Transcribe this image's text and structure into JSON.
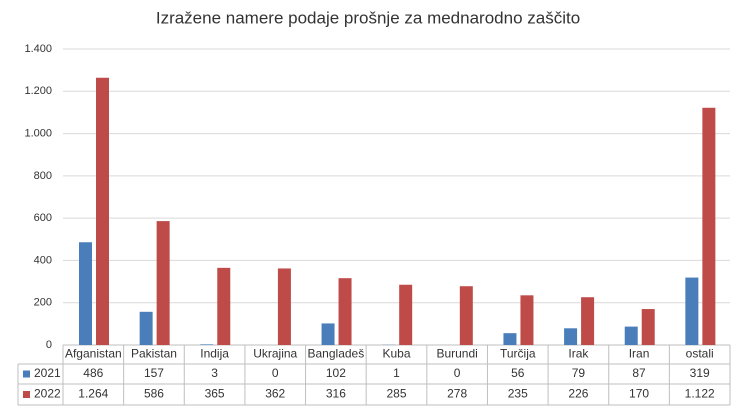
{
  "chart_data": {
    "type": "bar",
    "title": "Izražene namere podaje prošnje za mednarodno zaščito",
    "categories": [
      "Afganistan",
      "Pakistan",
      "Indija",
      "Ukrajina",
      "Bangladeš",
      "Kuba",
      "Burundi",
      "Turčija",
      "Irak",
      "Iran",
      "ostali"
    ],
    "series": [
      {
        "name": "2021",
        "color": "#4a7ebb",
        "values": [
          486,
          157,
          3,
          0,
          102,
          1,
          0,
          56,
          79,
          87,
          319
        ]
      },
      {
        "name": "2022",
        "color": "#be4b48",
        "values": [
          1264,
          586,
          365,
          362,
          316,
          285,
          278,
          235,
          226,
          170,
          1122
        ],
        "value_labels": [
          "1.264",
          "586",
          "365",
          "362",
          "316",
          "285",
          "278",
          "235",
          "226",
          "170",
          "1.122"
        ]
      }
    ],
    "ylim": [
      0,
      1400
    ],
    "yticks": [
      0,
      200,
      400,
      600,
      800,
      {
        "value": 1000,
        "label": "1.000"
      },
      {
        "value": 1200,
        "label": "1.200"
      },
      {
        "value": 1400,
        "label": "1.400"
      }
    ],
    "grid": true
  }
}
